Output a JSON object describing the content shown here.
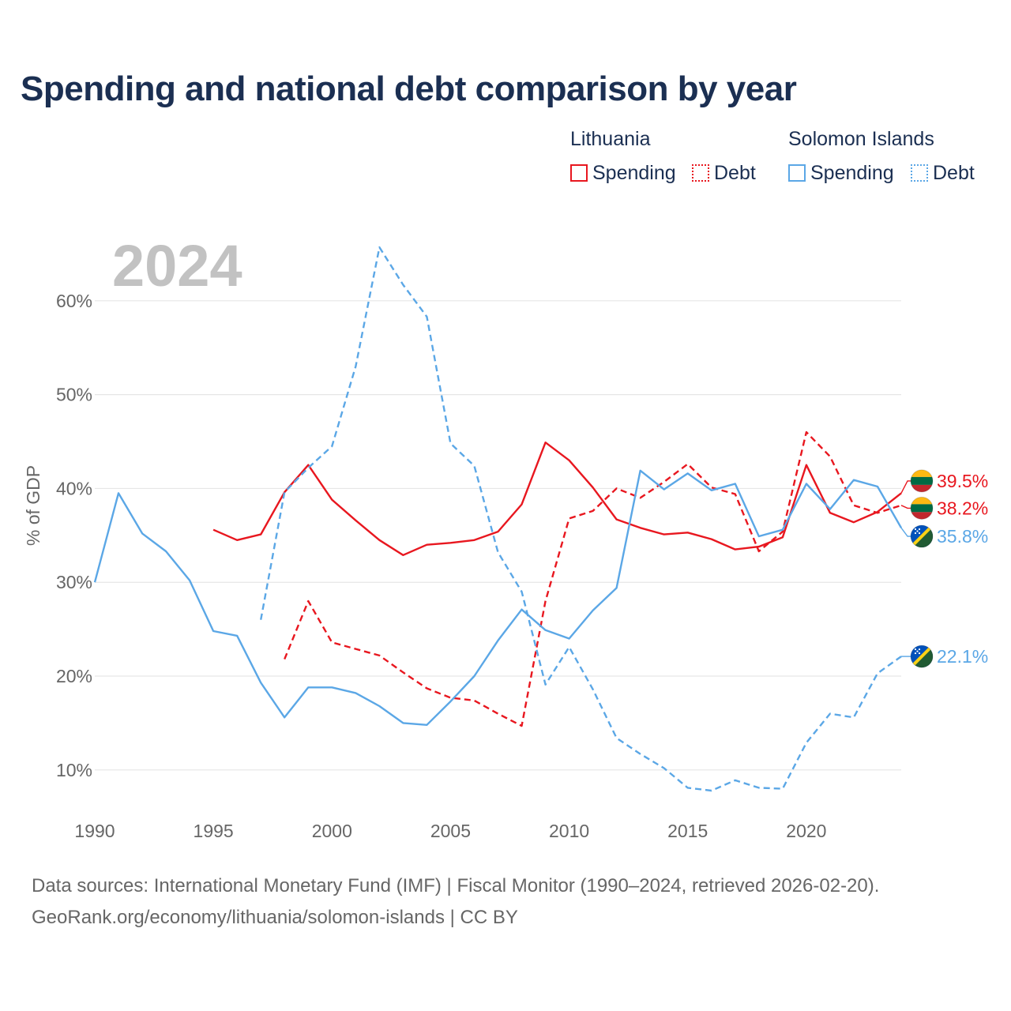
{
  "title": "Spending and national debt comparison by year",
  "legend": {
    "groups": [
      {
        "name": "Lithuania",
        "items": [
          "Spending",
          "Debt"
        ]
      },
      {
        "name": "Solomon Islands",
        "items": [
          "Spending",
          "Debt"
        ]
      }
    ]
  },
  "colors": {
    "lithuania": "#e8171f",
    "solomon": "#5ba7e6",
    "grid": "#e6e6e6",
    "axis_text": "#666666",
    "year_watermark": "#c2c2c2"
  },
  "chart_data": {
    "type": "line",
    "year_label": "2024",
    "ylabel": "% of GDP",
    "xlim": [
      1990,
      2024
    ],
    "ylim": [
      3,
      70
    ],
    "x_ticks": [
      1990,
      1995,
      2000,
      2005,
      2010,
      2015,
      2020
    ],
    "x_tick_labels": [
      "1990",
      "1995",
      "2000",
      "2005",
      "2010",
      "2015",
      "2020"
    ],
    "y_ticks": [
      10,
      20,
      30,
      40,
      50,
      60
    ],
    "y_tick_labels": [
      "10%",
      "20%",
      "30%",
      "40%",
      "50%",
      "60%"
    ],
    "series": [
      {
        "key": "lt_spending",
        "country": "Lithuania",
        "name": "Spending",
        "dash": false,
        "color": "#e8171f",
        "x": [
          1995,
          1996,
          1997,
          1998,
          1999,
          2000,
          2001,
          2002,
          2003,
          2004,
          2005,
          2006,
          2007,
          2008,
          2009,
          2010,
          2011,
          2012,
          2013,
          2014,
          2015,
          2016,
          2017,
          2018,
          2019,
          2020,
          2021,
          2022,
          2023,
          2024
        ],
        "values": [
          35.6,
          34.5,
          35.1,
          39.6,
          42.5,
          38.8,
          36.6,
          34.5,
          32.9,
          34.0,
          34.2,
          34.5,
          35.4,
          38.3,
          44.9,
          43.0,
          40.1,
          36.7,
          35.8,
          35.1,
          35.3,
          34.6,
          33.5,
          33.8,
          34.8,
          42.5,
          37.4,
          36.4,
          37.5,
          39.5
        ],
        "end_label": "39.5%"
      },
      {
        "key": "lt_debt",
        "country": "Lithuania",
        "name": "Debt",
        "dash": true,
        "color": "#e8171f",
        "x": [
          1998,
          1999,
          2000,
          2001,
          2002,
          2003,
          2004,
          2005,
          2006,
          2007,
          2008,
          2009,
          2010,
          2011,
          2012,
          2013,
          2014,
          2015,
          2016,
          2017,
          2018,
          2019,
          2020,
          2021,
          2022,
          2023,
          2024
        ],
        "values": [
          21.8,
          28.0,
          23.6,
          22.9,
          22.2,
          20.4,
          18.7,
          17.7,
          17.4,
          16.0,
          14.7,
          28.0,
          36.8,
          37.6,
          40.0,
          39.0,
          40.7,
          42.6,
          40.1,
          39.4,
          33.3,
          35.4,
          46.0,
          43.4,
          38.2,
          37.4,
          38.2
        ],
        "end_label": "38.2%"
      },
      {
        "key": "sb_spending",
        "country": "Solomon Islands",
        "name": "Spending",
        "dash": false,
        "color": "#5ba7e6",
        "x": [
          1990,
          1991,
          1992,
          1993,
          1994,
          1995,
          1996,
          1997,
          1998,
          1999,
          2000,
          2001,
          2002,
          2003,
          2004,
          2005,
          2006,
          2007,
          2008,
          2009,
          2010,
          2011,
          2012,
          2013,
          2014,
          2015,
          2016,
          2017,
          2018,
          2019,
          2020,
          2021,
          2022,
          2023,
          2024
        ],
        "values": [
          30.0,
          39.5,
          35.2,
          33.3,
          30.2,
          24.8,
          24.3,
          19.3,
          15.6,
          18.8,
          18.8,
          18.2,
          16.8,
          15.0,
          14.8,
          17.3,
          20.0,
          23.8,
          27.1,
          24.9,
          24.0,
          27.0,
          29.4,
          41.9,
          39.9,
          41.6,
          39.8,
          40.5,
          34.9,
          35.6,
          40.5,
          37.8,
          40.9,
          40.2,
          35.8
        ],
        "end_label": "35.8%"
      },
      {
        "key": "sb_debt",
        "country": "Solomon Islands",
        "name": "Debt",
        "dash": true,
        "color": "#5ba7e6",
        "x": [
          1997,
          1998,
          1999,
          2000,
          2001,
          2002,
          2003,
          2004,
          2005,
          2006,
          2007,
          2008,
          2009,
          2010,
          2011,
          2012,
          2013,
          2014,
          2015,
          2016,
          2017,
          2018,
          2019,
          2020,
          2021,
          2022,
          2023,
          2024
        ],
        "values": [
          26.0,
          39.6,
          42.2,
          44.5,
          53.0,
          65.7,
          61.7,
          58.3,
          44.8,
          42.4,
          33.2,
          29.0,
          19.1,
          23.1,
          18.6,
          13.4,
          11.7,
          10.2,
          8.1,
          7.8,
          8.9,
          8.1,
          8.0,
          12.9,
          16.0,
          15.6,
          20.3,
          22.1
        ],
        "end_label": "22.1%"
      }
    ],
    "end_labels": [
      {
        "series": "lt_spending",
        "text": "39.5%",
        "flag": "lithuania",
        "label_value": 40.8
      },
      {
        "series": "lt_debt",
        "text": "38.2%",
        "flag": "lithuania",
        "label_value": 37.9
      },
      {
        "series": "sb_spending",
        "text": "35.8%",
        "flag": "solomon",
        "label_value": 34.9
      },
      {
        "series": "sb_debt",
        "text": "22.1%",
        "flag": "solomon",
        "label_value": 22.1
      }
    ]
  },
  "footer": {
    "line1": "Data sources: International Monetary Fund (IMF) | Fiscal Monitor (1990–2024, retrieved 2026-02-20).",
    "line2": "GeoRank.org/economy/lithuania/solomon-islands | CC BY"
  }
}
